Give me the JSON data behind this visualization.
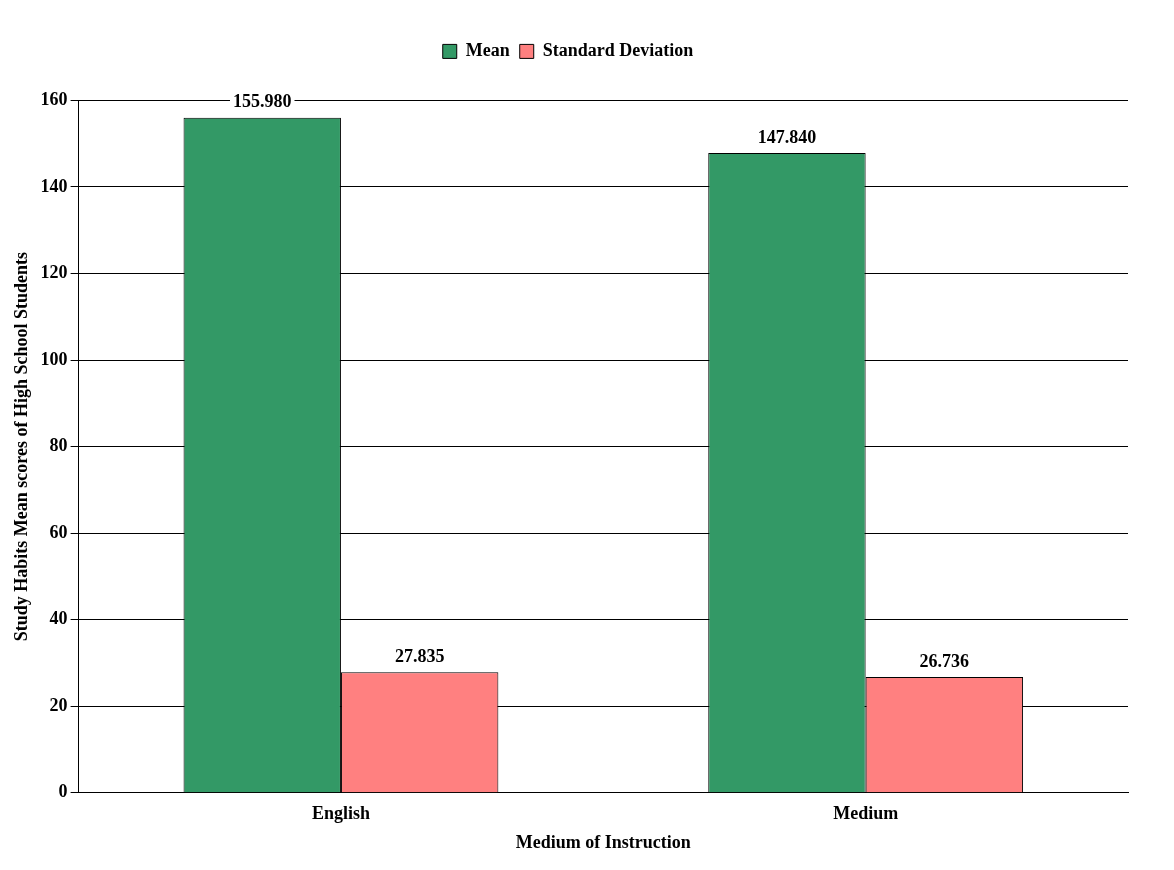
{
  "chart_data": {
    "type": "bar",
    "categories": [
      "English",
      "Medium"
    ],
    "series": [
      {
        "name": "Mean",
        "color": "#339966",
        "values": [
          155.98,
          147.84
        ],
        "value_labels": [
          "155.980",
          "147.840"
        ]
      },
      {
        "name": "Standard Deviation",
        "color": "#ff8080",
        "values": [
          27.835,
          26.736
        ],
        "value_labels": [
          "27.835",
          "26.736"
        ]
      }
    ],
    "xlabel": "Medium of Instruction",
    "ylabel": "Study Habits Mean scores of High School Students",
    "ylim": [
      0,
      160
    ],
    "yticks": [
      0,
      20,
      40,
      60,
      80,
      100,
      120,
      140,
      160
    ],
    "grid": "y",
    "legend": "top"
  }
}
